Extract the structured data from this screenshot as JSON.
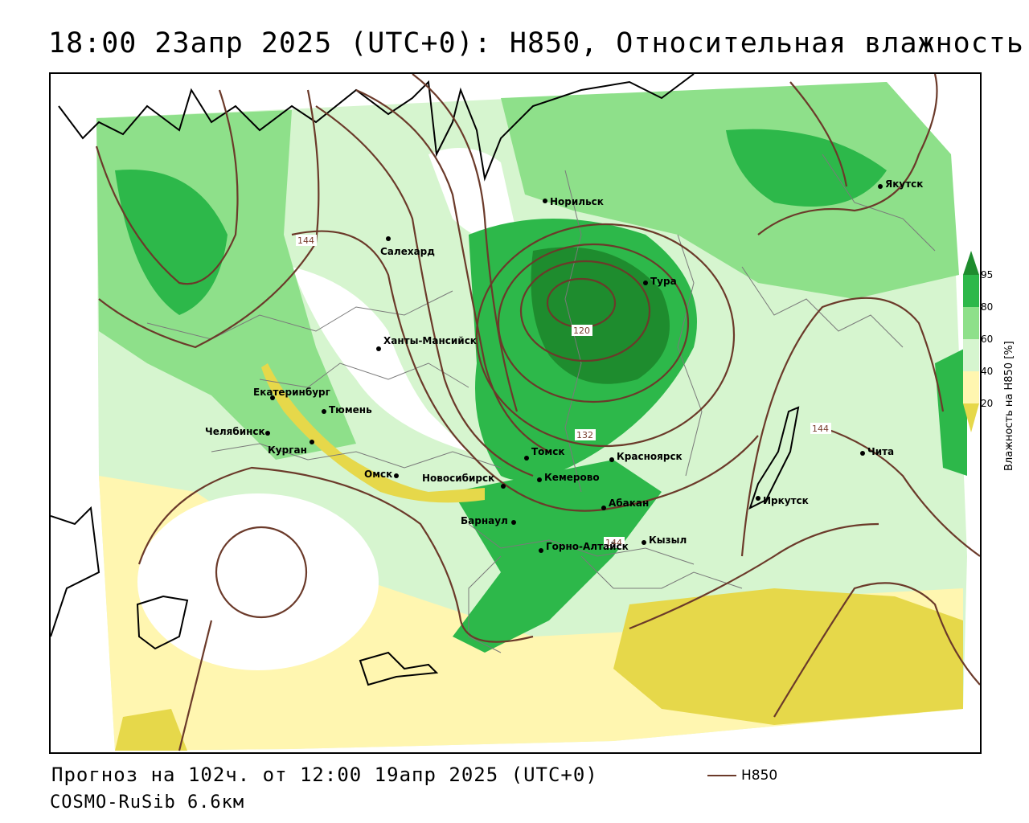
{
  "title": "18:00 23апр 2025 (UTC+0): H850, Относительная влажность",
  "footer": {
    "forecast": "Прогноз на 102ч. от 12:00 19апр 2025 (UTC+0)",
    "model": "COSMO-RuSib 6.6км",
    "legend_label": "H850"
  },
  "colorbar": {
    "title": "Влажность на H850 [%]",
    "ticks": [
      "95",
      "80",
      "60",
      "40",
      "20"
    ],
    "colors": {
      "above95": "#1e8c2e",
      "c80_95": "#2db84a",
      "c60_80": "#8ee08a",
      "c40_60": "#d6f5cf",
      "c20_40": "#fff6b0",
      "below20": "#e6d84a"
    }
  },
  "isoline_color": "#6b3a2a",
  "isoline_labels": [
    "144",
    "120",
    "132",
    "144",
    "144"
  ],
  "cities": [
    {
      "name": "Норильск"
    },
    {
      "name": "Якутск"
    },
    {
      "name": "Салехард"
    },
    {
      "name": "Тура"
    },
    {
      "name": "Ханты-Мансийск"
    },
    {
      "name": "Екатеринбург"
    },
    {
      "name": "Тюмень"
    },
    {
      "name": "Челябинск"
    },
    {
      "name": "Курган"
    },
    {
      "name": "Омск"
    },
    {
      "name": "Новосибирск"
    },
    {
      "name": "Томск"
    },
    {
      "name": "Кемерово"
    },
    {
      "name": "Красноярск"
    },
    {
      "name": "Абакан"
    },
    {
      "name": "Барнаул"
    },
    {
      "name": "Горно-Алтайск"
    },
    {
      "name": "Кызыл"
    },
    {
      "name": "Иркутск"
    },
    {
      "name": "Чита"
    }
  ]
}
